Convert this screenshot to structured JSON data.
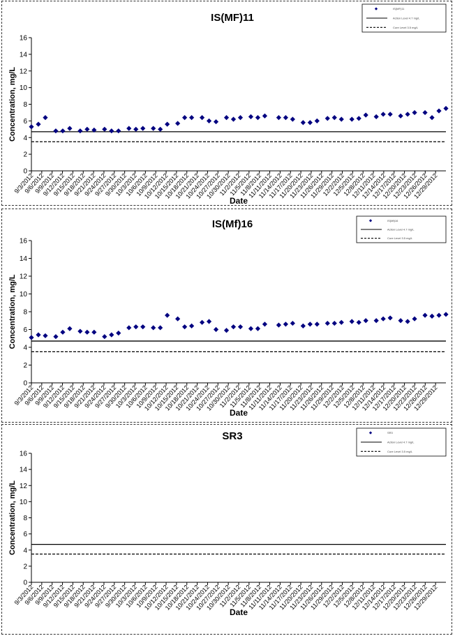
{
  "chart_data": [
    {
      "type": "scatter",
      "title": "IS(MF)11",
      "xlabel": "Date",
      "ylabel": "Concentration, mg/L",
      "ylim": [
        0,
        16
      ],
      "yticks": [
        "0",
        "2",
        "4",
        "6",
        "8",
        "10",
        "12",
        "14",
        "16"
      ],
      "xticks": [
        "9/3/2012",
        "9/6/2012",
        "9/9/2012",
        "9/12/2012",
        "9/15/2012",
        "9/18/2012",
        "9/21/2012",
        "9/24/2012",
        "9/27/2012",
        "9/30/2012",
        "10/3/2012",
        "10/6/2012",
        "10/9/2012",
        "10/12/2012",
        "10/15/2012",
        "10/18/2012",
        "10/21/2012",
        "10/24/2012",
        "10/27/2012",
        "10/30/2012",
        "11/2/2012",
        "11/5/2012",
        "11/8/2012",
        "11/11/2012",
        "11/14/2012",
        "11/17/2012",
        "11/20/2012",
        "11/23/2012",
        "11/26/2012",
        "11/29/2012",
        "12/2/2012",
        "12/5/2012",
        "12/8/2012",
        "12/11/2012",
        "12/14/2012",
        "12/17/2012",
        "12/20/2012",
        "12/23/2012",
        "12/26/2012",
        "12/29/2012"
      ],
      "x_range": [
        "2012-09-03",
        "2012-12-31"
      ],
      "grid": false,
      "legend_position": "top-right",
      "legend": [
        "IS(MF)11",
        "Action Level 4.7 mg/L",
        "Cure Level 3.5 mg/L"
      ],
      "reference_lines": [
        {
          "name": "Action Level 4.7 mg/L",
          "y": 4.7,
          "style": "solid"
        },
        {
          "name": "Cure Level 3.5 mg/L",
          "y": 3.5,
          "style": "dashed"
        }
      ],
      "series": [
        {
          "name": "IS(MF)11",
          "color": "#000080",
          "marker": "diamond",
          "points": [
            [
              "2012-09-03",
              5.3
            ],
            [
              "2012-09-05",
              5.6
            ],
            [
              "2012-09-07",
              6.4
            ],
            [
              "2012-09-10",
              4.8
            ],
            [
              "2012-09-12",
              4.8
            ],
            [
              "2012-09-14",
              5.1
            ],
            [
              "2012-09-17",
              4.8
            ],
            [
              "2012-09-19",
              5.0
            ],
            [
              "2012-09-21",
              4.9
            ],
            [
              "2012-09-24",
              5.0
            ],
            [
              "2012-09-26",
              4.8
            ],
            [
              "2012-09-28",
              4.8
            ],
            [
              "2012-10-01",
              5.1
            ],
            [
              "2012-10-03",
              5.0
            ],
            [
              "2012-10-05",
              5.1
            ],
            [
              "2012-10-08",
              5.1
            ],
            [
              "2012-10-10",
              5.0
            ],
            [
              "2012-10-12",
              5.6
            ],
            [
              "2012-10-15",
              5.7
            ],
            [
              "2012-10-17",
              6.4
            ],
            [
              "2012-10-19",
              6.4
            ],
            [
              "2012-10-22",
              6.4
            ],
            [
              "2012-10-24",
              6.0
            ],
            [
              "2012-10-26",
              5.9
            ],
            [
              "2012-10-29",
              6.4
            ],
            [
              "2012-10-31",
              6.2
            ],
            [
              "2012-11-02",
              6.4
            ],
            [
              "2012-11-05",
              6.5
            ],
            [
              "2012-11-07",
              6.4
            ],
            [
              "2012-11-09",
              6.6
            ],
            [
              "2012-11-13",
              6.4
            ],
            [
              "2012-11-15",
              6.4
            ],
            [
              "2012-11-17",
              6.2
            ],
            [
              "2012-11-20",
              5.8
            ],
            [
              "2012-11-22",
              5.8
            ],
            [
              "2012-11-24",
              6.0
            ],
            [
              "2012-11-27",
              6.3
            ],
            [
              "2012-11-29",
              6.4
            ],
            [
              "2012-12-01",
              6.2
            ],
            [
              "2012-12-04",
              6.2
            ],
            [
              "2012-12-06",
              6.3
            ],
            [
              "2012-12-08",
              6.7
            ],
            [
              "2012-12-11",
              6.5
            ],
            [
              "2012-12-13",
              6.8
            ],
            [
              "2012-12-15",
              6.8
            ],
            [
              "2012-12-18",
              6.6
            ],
            [
              "2012-12-20",
              6.8
            ],
            [
              "2012-12-22",
              7.0
            ],
            [
              "2012-12-25",
              7.0
            ],
            [
              "2012-12-27",
              6.4
            ],
            [
              "2012-12-29",
              7.2
            ],
            [
              "2012-12-31",
              7.5
            ]
          ]
        }
      ]
    },
    {
      "type": "scatter",
      "title": "IS(Mf)16",
      "xlabel": "Date",
      "ylabel": "Concentration, mg/L",
      "ylim": [
        0,
        16
      ],
      "yticks": [
        "0",
        "2",
        "4",
        "6",
        "8",
        "10",
        "12",
        "14",
        "16"
      ],
      "xticks": [
        "9/3/2012",
        "9/6/2012",
        "9/9/2012",
        "9/12/2012",
        "9/15/2012",
        "9/18/2012",
        "9/21/2012",
        "9/24/2012",
        "9/27/2012",
        "9/30/2012",
        "10/3/2012",
        "10/6/2012",
        "10/9/2012",
        "10/12/2012",
        "10/15/2012",
        "10/18/2012",
        "10/21/2012",
        "10/24/2012",
        "10/27/2012",
        "10/30/2012",
        "11/2/2012",
        "11/5/2012",
        "11/8/2012",
        "11/11/2012",
        "11/14/2012",
        "11/17/2012",
        "11/20/2012",
        "11/23/2012",
        "11/26/2012",
        "11/29/2012",
        "12/2/2012",
        "12/5/2012",
        "12/8/2012",
        "12/11/2012",
        "12/14/2012",
        "12/17/2012",
        "12/20/2012",
        "12/23/2012",
        "12/26/2012",
        "12/29/2012"
      ],
      "x_range": [
        "2012-09-03",
        "2012-12-31"
      ],
      "grid": false,
      "legend_position": "top-right",
      "legend": [
        "IS(Mf)16",
        "Action Level 4.7 mg/L",
        "Cure Level 3.5 mg/L"
      ],
      "reference_lines": [
        {
          "name": "Action Level 4.7 mg/L",
          "y": 4.7,
          "style": "solid"
        },
        {
          "name": "Cure Level 3.5 mg/L",
          "y": 3.5,
          "style": "dashed"
        }
      ],
      "series": [
        {
          "name": "IS(Mf)16",
          "color": "#000080",
          "marker": "diamond",
          "points": [
            [
              "2012-09-03",
              5.1
            ],
            [
              "2012-09-05",
              5.4
            ],
            [
              "2012-09-07",
              5.3
            ],
            [
              "2012-09-10",
              5.2
            ],
            [
              "2012-09-12",
              5.7
            ],
            [
              "2012-09-14",
              6.1
            ],
            [
              "2012-09-17",
              5.8
            ],
            [
              "2012-09-19",
              5.7
            ],
            [
              "2012-09-21",
              5.7
            ],
            [
              "2012-09-24",
              5.2
            ],
            [
              "2012-09-26",
              5.4
            ],
            [
              "2012-09-28",
              5.6
            ],
            [
              "2012-10-01",
              6.2
            ],
            [
              "2012-10-03",
              6.3
            ],
            [
              "2012-10-05",
              6.3
            ],
            [
              "2012-10-08",
              6.2
            ],
            [
              "2012-10-10",
              6.2
            ],
            [
              "2012-10-12",
              7.6
            ],
            [
              "2012-10-15",
              7.2
            ],
            [
              "2012-10-17",
              6.3
            ],
            [
              "2012-10-19",
              6.4
            ],
            [
              "2012-10-22",
              6.8
            ],
            [
              "2012-10-24",
              6.9
            ],
            [
              "2012-10-26",
              6.0
            ],
            [
              "2012-10-29",
              5.9
            ],
            [
              "2012-10-31",
              6.3
            ],
            [
              "2012-11-02",
              6.3
            ],
            [
              "2012-11-05",
              6.1
            ],
            [
              "2012-11-07",
              6.1
            ],
            [
              "2012-11-09",
              6.6
            ],
            [
              "2012-11-13",
              6.5
            ],
            [
              "2012-11-15",
              6.6
            ],
            [
              "2012-11-17",
              6.7
            ],
            [
              "2012-11-20",
              6.4
            ],
            [
              "2012-11-22",
              6.6
            ],
            [
              "2012-11-24",
              6.6
            ],
            [
              "2012-11-27",
              6.7
            ],
            [
              "2012-11-29",
              6.7
            ],
            [
              "2012-12-01",
              6.8
            ],
            [
              "2012-12-04",
              6.9
            ],
            [
              "2012-12-06",
              6.8
            ],
            [
              "2012-12-08",
              7.0
            ],
            [
              "2012-12-11",
              7.0
            ],
            [
              "2012-12-13",
              7.2
            ],
            [
              "2012-12-15",
              7.3
            ],
            [
              "2012-12-18",
              7.0
            ],
            [
              "2012-12-20",
              6.9
            ],
            [
              "2012-12-22",
              7.2
            ],
            [
              "2012-12-25",
              7.6
            ],
            [
              "2012-12-27",
              7.5
            ],
            [
              "2012-12-29",
              7.6
            ],
            [
              "2012-12-31",
              7.7
            ]
          ]
        }
      ]
    },
    {
      "type": "scatter",
      "title": "SR3",
      "xlabel": "Date",
      "ylabel": "Concentration, mg/L",
      "ylim": [
        0,
        16
      ],
      "yticks": [
        "0",
        "2",
        "4",
        "6",
        "8",
        "10",
        "12",
        "14",
        "16"
      ],
      "xticks": [
        "9/3/2012",
        "9/6/2012",
        "9/9/2012",
        "9/12/2012",
        "9/15/2012",
        "9/18/2012",
        "9/21/2012",
        "9/24/2012",
        "9/27/2012",
        "9/30/2012",
        "10/3/2012",
        "10/6/2012",
        "10/9/2012",
        "10/12/2012",
        "10/15/2012",
        "10/18/2012",
        "10/21/2012",
        "10/24/2012",
        "10/27/2012",
        "10/30/2012",
        "11/2/2012",
        "11/5/2012",
        "11/8/2012",
        "11/11/2012",
        "11/14/2012",
        "11/17/2012",
        "11/20/2012",
        "11/23/2012",
        "11/26/2012",
        "11/29/2012",
        "12/2/2012",
        "12/5/2012",
        "12/8/2012",
        "12/11/2012",
        "12/14/2012",
        "12/17/2012",
        "12/20/2012",
        "12/23/2012",
        "12/26/2012",
        "12/29/2012"
      ],
      "x_range": [
        "2012-09-03",
        "2012-12-31"
      ],
      "grid": false,
      "legend_position": "top-right",
      "legend": [
        "SR3",
        "Action Level 4.7 mg/L",
        "Cure Level 3.5 mg/L"
      ],
      "reference_lines": [
        {
          "name": "Action Level 4.7 mg/L",
          "y": 4.7,
          "style": "solid"
        },
        {
          "name": "Cure Level 3.5 mg/L",
          "y": 3.5,
          "style": "dashed"
        }
      ],
      "series": [
        {
          "name": "SR3",
          "color": "#000080",
          "marker": "diamond",
          "points": []
        }
      ]
    }
  ]
}
